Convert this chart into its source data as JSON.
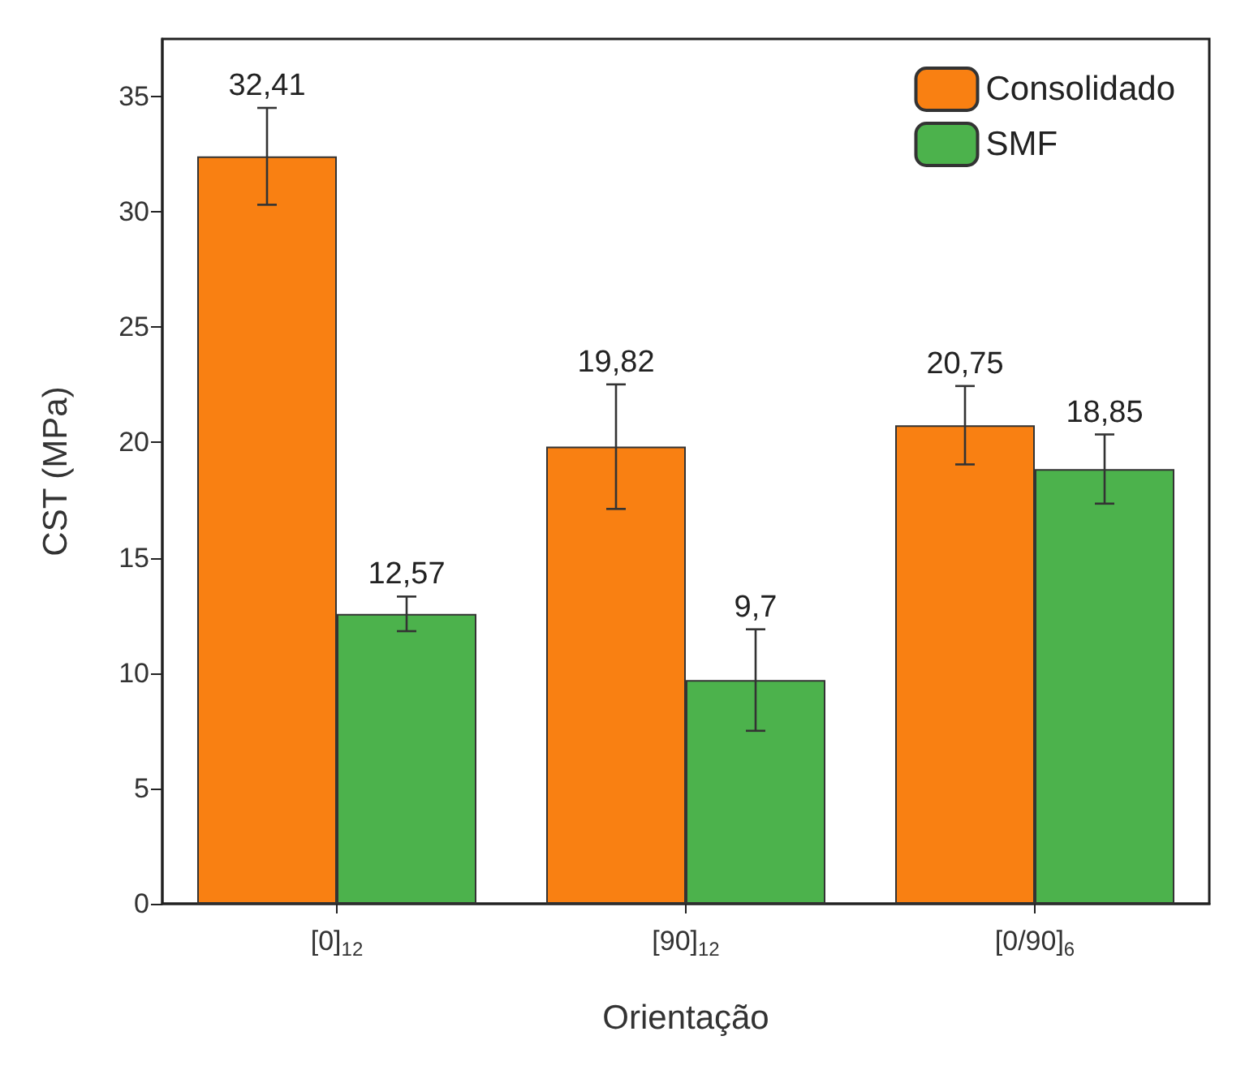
{
  "chart_data": {
    "type": "bar",
    "xlabel": "Orientação",
    "ylabel": "CST (MPa)",
    "categories": [
      "[0]$_{12}$",
      "[90]$_{12}$",
      "[0/90]$_{6}$"
    ],
    "series": [
      {
        "name": "Consolidado",
        "color": "#f98012",
        "values": [
          32.41,
          19.82,
          20.75
        ],
        "errors": [
          2.1,
          2.7,
          1.7
        ],
        "value_labels": [
          "32,41",
          "19,82",
          "20,75"
        ]
      },
      {
        "name": "SMF",
        "color": "#4cb24c",
        "values": [
          12.57,
          9.7,
          18.85
        ],
        "errors": [
          0.75,
          2.2,
          1.5
        ],
        "value_labels": [
          "12,57",
          "9,7",
          "18,85"
        ]
      }
    ],
    "ylim": [
      0,
      37.5
    ],
    "yticks": [
      0,
      5,
      10,
      15,
      20,
      25,
      30,
      35
    ],
    "legend": "top right"
  }
}
